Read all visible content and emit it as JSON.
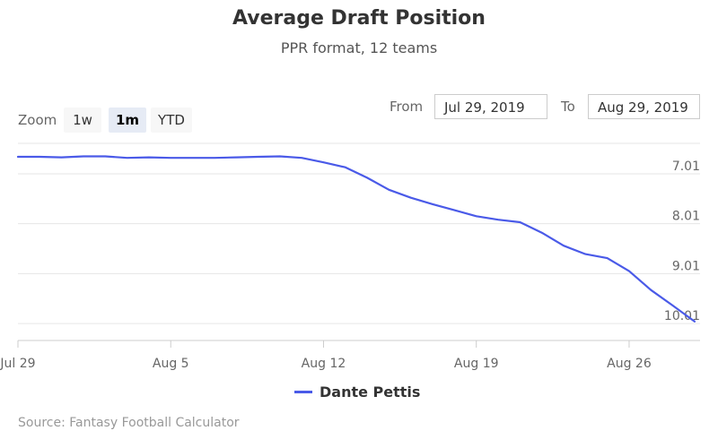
{
  "chart_data": {
    "type": "line",
    "title": "Average Draft Position",
    "subtitle": "PPR format, 12 teams",
    "source": "Source: Fantasy Football Calculator",
    "x_ticks": [
      "Jul 29",
      "Aug 5",
      "Aug 12",
      "Aug 19",
      "Aug 26"
    ],
    "y_ticks": [
      "7.01",
      "8.01",
      "9.01",
      "10.01"
    ],
    "ylim": [
      6.4,
      10.35
    ],
    "y_reversed": true,
    "grid": true,
    "legend_position": "bottom",
    "series": [
      {
        "name": "Dante Pettis",
        "color": "#4a5ae8",
        "points": [
          {
            "x": "2019-07-29",
            "y": 6.67
          },
          {
            "x": "2019-07-30",
            "y": 6.67
          },
          {
            "x": "2019-07-31",
            "y": 6.68
          },
          {
            "x": "2019-08-01",
            "y": 6.66
          },
          {
            "x": "2019-08-02",
            "y": 6.66
          },
          {
            "x": "2019-08-03",
            "y": 6.69
          },
          {
            "x": "2019-08-04",
            "y": 6.68
          },
          {
            "x": "2019-08-05",
            "y": 6.69
          },
          {
            "x": "2019-08-06",
            "y": 6.69
          },
          {
            "x": "2019-08-07",
            "y": 6.69
          },
          {
            "x": "2019-08-08",
            "y": 6.68
          },
          {
            "x": "2019-08-09",
            "y": 6.67
          },
          {
            "x": "2019-08-10",
            "y": 6.66
          },
          {
            "x": "2019-08-11",
            "y": 6.69
          },
          {
            "x": "2019-08-12",
            "y": 6.78
          },
          {
            "x": "2019-08-13",
            "y": 6.88
          },
          {
            "x": "2019-08-14",
            "y": 7.09
          },
          {
            "x": "2019-08-15",
            "y": 7.33
          },
          {
            "x": "2019-08-16",
            "y": 7.49
          },
          {
            "x": "2019-08-17",
            "y": 7.62
          },
          {
            "x": "2019-08-18",
            "y": 7.74
          },
          {
            "x": "2019-08-19",
            "y": 7.86
          },
          {
            "x": "2019-08-20",
            "y": 7.93
          },
          {
            "x": "2019-08-21",
            "y": 7.98
          },
          {
            "x": "2019-08-22",
            "y": 8.19
          },
          {
            "x": "2019-08-23",
            "y": 8.45
          },
          {
            "x": "2019-08-24",
            "y": 8.62
          },
          {
            "x": "2019-08-25",
            "y": 8.7
          },
          {
            "x": "2019-08-26",
            "y": 8.96
          },
          {
            "x": "2019-08-27",
            "y": 9.34
          },
          {
            "x": "2019-08-28",
            "y": 9.65
          },
          {
            "x": "2019-08-29",
            "y": 9.97
          }
        ]
      }
    ]
  },
  "toolbar": {
    "zoom_label": "Zoom",
    "zoom_options": [
      "1w",
      "1m",
      "YTD"
    ],
    "zoom_selected": "1m",
    "from_label": "From",
    "from_value": "Jul 29, 2019",
    "to_label": "To",
    "to_value": "Aug 29, 2019"
  }
}
